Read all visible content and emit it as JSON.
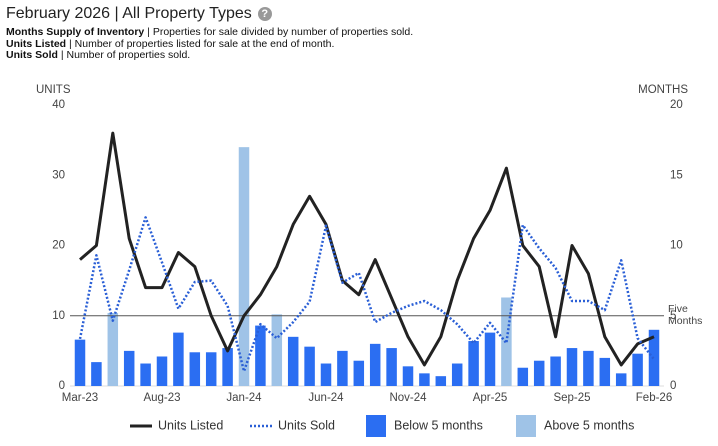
{
  "chart_data": {
    "type": "combo",
    "title": "February 2026 | All Property Types",
    "definitions": [
      {
        "term": "Months Supply of Inventory",
        "text": "| Properties for sale divided by number of properties sold."
      },
      {
        "term": "Units Listed",
        "text": "| Number of properties listed for sale at the end of month."
      },
      {
        "term": "Units Sold",
        "text": "| Number of properties sold."
      }
    ],
    "y_label": "UNITS",
    "y2_label": "MONTHS",
    "categories": [
      "Mar-23",
      null,
      null,
      null,
      null,
      "Aug-23",
      null,
      null,
      null,
      null,
      "Jan-24",
      null,
      null,
      null,
      null,
      "Jun-24",
      null,
      null,
      null,
      null,
      "Nov-24",
      null,
      null,
      null,
      null,
      "Apr-25",
      null,
      null,
      null,
      null,
      "Sep-25",
      null,
      null,
      null,
      null,
      "Feb-26"
    ],
    "ylim": [
      0,
      40
    ],
    "yticks": [
      0,
      10,
      20,
      30,
      40
    ],
    "y2lim": [
      0,
      20
    ],
    "y2ticks": [
      0,
      5,
      10,
      15,
      20
    ],
    "reference_line": {
      "value": 5,
      "axis": "y2",
      "label": "Five Months",
      "color": "#555"
    },
    "series": [
      {
        "name": "Units Listed",
        "type": "line",
        "style": "solid",
        "color": "#222222",
        "values": [
          18,
          20,
          36,
          21,
          14,
          14,
          19,
          17,
          10,
          5,
          10,
          13,
          17,
          23,
          27,
          23,
          15,
          13,
          18,
          12.5,
          7,
          3,
          7,
          15,
          21,
          25,
          31,
          20,
          17,
          7,
          20,
          16,
          7,
          3,
          6,
          7
        ]
      },
      {
        "name": "Units Sold",
        "type": "line",
        "style": "dotted",
        "color": "#2a5fd6",
        "values": [
          6.7,
          18.6,
          9.3,
          16.5,
          24,
          17.6,
          11,
          14.8,
          15,
          11.4,
          2.1,
          8.8,
          6.8,
          9.1,
          12,
          22.8,
          14.7,
          16.1,
          9.1,
          10.4,
          11.4,
          12.1,
          10.8,
          8.8,
          6.1,
          9.0,
          6.1,
          22.9,
          19.6,
          16.8,
          12.1,
          12.1,
          10.8,
          17.9,
          6.8,
          3.8
        ]
      },
      {
        "name": "Below 5 months",
        "type": "bar",
        "axis": "y2",
        "color": "#2b6ef2",
        "values": [
          3.3,
          1.7,
          null,
          2.5,
          1.6,
          2.1,
          3.8,
          2.4,
          2.4,
          2.7,
          null,
          4.3,
          null,
          3.5,
          2.8,
          1.6,
          2.5,
          1.8,
          3.0,
          2.7,
          1.4,
          0.9,
          0.7,
          1.6,
          3.2,
          3.8,
          null,
          1.3,
          1.8,
          2.1,
          2.7,
          2.5,
          2.0,
          0.9,
          2.3,
          4.0
        ]
      },
      {
        "name": "Above 5 months",
        "type": "bar",
        "axis": "y2",
        "color": "#9fc3e7",
        "values": [
          null,
          null,
          5.2,
          null,
          null,
          null,
          null,
          null,
          null,
          null,
          17.0,
          null,
          5.1,
          null,
          null,
          null,
          null,
          null,
          null,
          null,
          null,
          null,
          null,
          null,
          null,
          null,
          6.3,
          null,
          null,
          null,
          null,
          null,
          null,
          null,
          null,
          null
        ]
      }
    ]
  }
}
